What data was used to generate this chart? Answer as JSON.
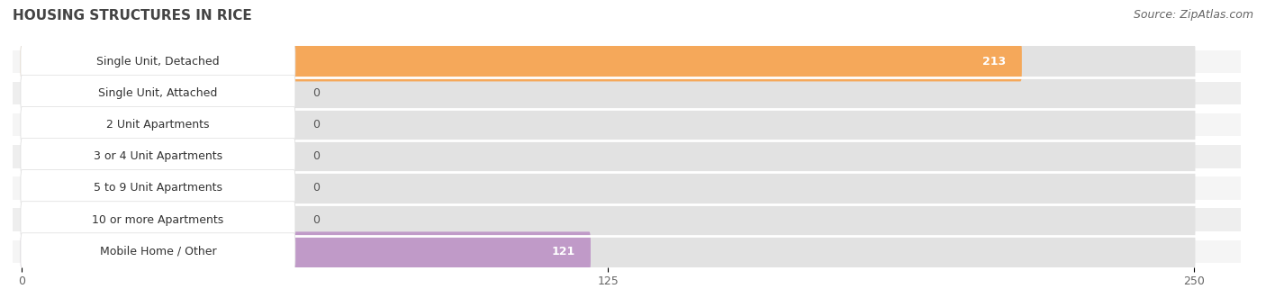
{
  "title": "HOUSING STRUCTURES IN RICE",
  "source": "Source: ZipAtlas.com",
  "categories": [
    "Single Unit, Detached",
    "Single Unit, Attached",
    "2 Unit Apartments",
    "3 or 4 Unit Apartments",
    "5 to 9 Unit Apartments",
    "10 or more Apartments",
    "Mobile Home / Other"
  ],
  "values": [
    213,
    0,
    0,
    0,
    0,
    0,
    121
  ],
  "bar_colors": [
    "#f5a85a",
    "#f0908a",
    "#9bbcda",
    "#9bbcda",
    "#9bbcda",
    "#9bbcda",
    "#c09ac8"
  ],
  "xlim_max": 250,
  "xticks": [
    0,
    125,
    250
  ],
  "title_fontsize": 11,
  "source_fontsize": 9,
  "value_fontsize": 9,
  "cat_label_fontsize": 9,
  "tick_fontsize": 9,
  "figure_bg": "#ffffff",
  "row_bg_even": "#f2f2f2",
  "row_bg_odd": "#e8e8e8",
  "bar_bg": "#e8e8e8",
  "label_bg": "#ffffff",
  "row_gap_color": "#ffffff"
}
